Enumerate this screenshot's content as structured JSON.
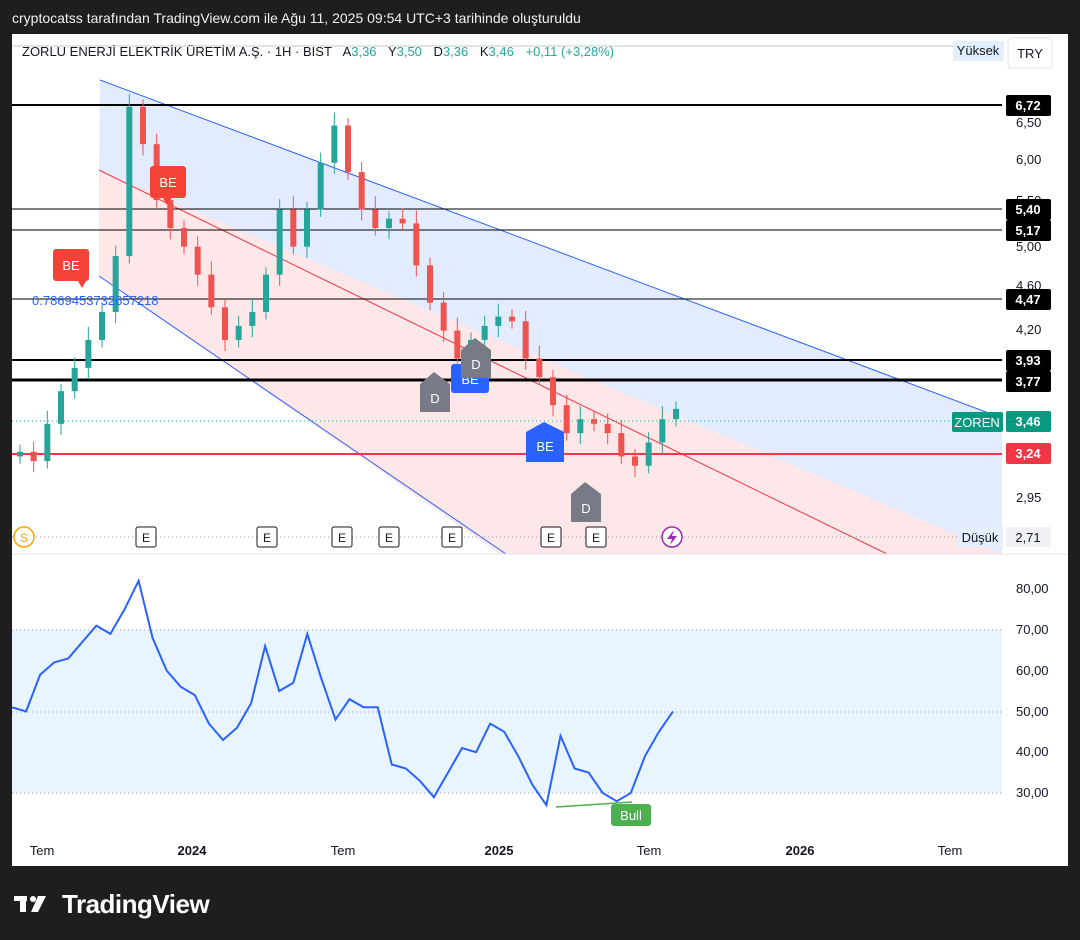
{
  "header": {
    "caption": "cryptocatss tarafından TradingView.com ile Ağu 11, 2025 09:54 UTC+3 tarihinde oluşturuldu"
  },
  "legend": {
    "name": "ZORLU ENERJİ ELEKTRİK ÜRETİM A.Ş. · 1H · BIST",
    "open_label": "A",
    "open": "3,36",
    "high_label": "Y",
    "high": "3,50",
    "low_label": "D",
    "low": "3,36",
    "close_label": "K",
    "close": "3,46",
    "change": "+0,11 (+3,28%)",
    "fib_label": "0.7869453732657218"
  },
  "currency": "TRY",
  "price_axis": {
    "ticks": [
      "6,50",
      "6,00",
      "5,50",
      "5,00",
      "4,60",
      "4,20",
      "3,80",
      "2,95"
    ],
    "high_tag": "Yüksek",
    "low_tag": "Düşük",
    "low_value": "2,71",
    "level_labels": [
      "6,72",
      "5,40",
      "5,17",
      "4,47",
      "3,93",
      "3,77"
    ],
    "red_level": "3,24",
    "symbol_tag": "ZOREN",
    "last_price": "3,46"
  },
  "rsi_axis": {
    "ticks": [
      "80,00",
      "70,00",
      "60,00",
      "50,00",
      "40,00",
      "30,00"
    ]
  },
  "time_axis": [
    {
      "label": "Tem",
      "bold": false
    },
    {
      "label": "2024",
      "bold": true
    },
    {
      "label": "Tem",
      "bold": false
    },
    {
      "label": "2025",
      "bold": true
    },
    {
      "label": "Tem",
      "bold": false
    },
    {
      "label": "2026",
      "bold": true
    },
    {
      "label": "Tem",
      "bold": false
    }
  ],
  "markers": {
    "signal_be": "BE",
    "signal_d": "D",
    "event_e": "E",
    "split_s": "S",
    "rsi_divergence": "Bull"
  },
  "colors": {
    "up": "#26a69a",
    "down": "#ef5350",
    "rsi": "#2962ff",
    "channel_blue": "#2962ff",
    "channel_red": "#f23645",
    "bull": "#4caf50",
    "be_red": "#f44336",
    "be_blue": "#2962ff",
    "d_gray": "#787b86",
    "symbol_tag": "#089981"
  },
  "brand": "TradingView",
  "chart_data": [
    {
      "type": "candlestick",
      "title": "ZORLU ENERJİ ELEKTRİK ÜRETİM A.Ş. · 1H · BIST",
      "currency": "TRY",
      "x_ticks": [
        "Tem",
        "2024",
        "Tem",
        "2025",
        "Tem",
        "2026",
        "Tem"
      ],
      "horizontal_levels": [
        6.72,
        5.4,
        5.17,
        4.47,
        3.93,
        3.77
      ],
      "support_level": 3.24,
      "last_price": 3.46,
      "range_high": 6.72,
      "range_low": 2.71,
      "closes_approx": [
        3.0,
        2.9,
        3.3,
        3.65,
        3.9,
        4.2,
        4.5,
        5.1,
        6.7,
        6.3,
        5.7,
        5.4,
        5.2,
        4.9,
        4.55,
        4.2,
        4.35,
        4.5,
        4.9,
        5.6,
        5.2,
        5.6,
        6.1,
        6.5,
        6.0,
        5.6,
        5.4,
        5.5,
        5.45,
        5.0,
        4.6,
        4.3,
        4.0,
        4.2,
        4.35,
        4.45,
        4.4,
        4.0,
        3.8,
        3.5,
        3.2,
        3.35,
        3.3,
        3.2,
        2.95,
        2.85,
        3.1,
        3.35,
        3.46
      ]
    },
    {
      "type": "line",
      "title": "RSI",
      "y_ticks": [
        80,
        70,
        60,
        50,
        40,
        30
      ],
      "band": [
        30,
        70
      ],
      "values": [
        51,
        50,
        59,
        62,
        63,
        67,
        71,
        69,
        75,
        82,
        68,
        60,
        56,
        54,
        47,
        43,
        46,
        52,
        66,
        55,
        57,
        69,
        58,
        48,
        53,
        51,
        51,
        37,
        36,
        33,
        29,
        35,
        41,
        40,
        47,
        45,
        39,
        32,
        27,
        44,
        36,
        35,
        30,
        28,
        30,
        39,
        45,
        50
      ],
      "annotation": "Bull"
    }
  ]
}
